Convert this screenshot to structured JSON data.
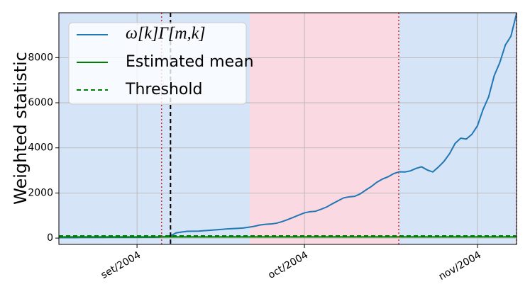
{
  "chart_data": {
    "type": "line",
    "y_label": "Weighted statistic",
    "categories": [
      null,
      null,
      null,
      null,
      null,
      null,
      null,
      null,
      null,
      null,
      null,
      null,
      null,
      null,
      "set/2004",
      null,
      null,
      null,
      null,
      null,
      null,
      null,
      null,
      null,
      null,
      null,
      null,
      null,
      null,
      null,
      null,
      null,
      null,
      null,
      null,
      null,
      null,
      null,
      null,
      null,
      null,
      null,
      null,
      null,
      "oct/2004",
      null,
      null,
      null,
      null,
      null,
      null,
      null,
      null,
      null,
      null,
      null,
      null,
      null,
      null,
      null,
      null,
      null,
      null,
      null,
      null,
      null,
      null,
      null,
      null,
      null,
      null,
      null,
      null,
      null,
      null,
      "nov/2004",
      null,
      null,
      null,
      null,
      null,
      null,
      null
    ],
    "series": [
      {
        "name": "ω[k]Γ[m,k]",
        "color": "#1f77b4",
        "style": "solid",
        "values": [
          20,
          20,
          20,
          20,
          25,
          25,
          25,
          25,
          25,
          30,
          30,
          30,
          30,
          30,
          30,
          35,
          35,
          35,
          40,
          60,
          100,
          230,
          270,
          300,
          305,
          310,
          330,
          345,
          365,
          385,
          405,
          420,
          430,
          445,
          480,
          520,
          580,
          610,
          625,
          660,
          730,
          820,
          920,
          1020,
          1120,
          1170,
          1190,
          1280,
          1380,
          1520,
          1650,
          1780,
          1830,
          1850,
          1960,
          2130,
          2290,
          2480,
          2620,
          2720,
          2860,
          2940,
          2930,
          2980,
          3090,
          3160,
          3020,
          2930,
          3150,
          3400,
          3740,
          4200,
          4430,
          4390,
          4600,
          4980,
          5700,
          6260,
          7200,
          7780,
          8560,
          8950,
          9950
        ]
      },
      {
        "name": "Estimated mean",
        "color": "#008000",
        "style": "solid",
        "values": [
          55,
          55,
          55,
          55,
          55,
          55,
          55,
          55,
          55,
          55,
          55,
          55,
          55,
          55,
          55,
          55,
          55,
          55,
          55,
          55,
          55,
          55,
          55,
          55,
          55,
          55,
          55,
          55,
          55,
          55,
          55,
          55,
          55,
          55,
          55,
          55,
          55,
          55,
          55,
          55,
          55,
          55,
          55,
          55,
          55,
          55,
          55,
          55,
          55,
          55,
          55,
          55,
          55,
          55,
          55,
          55,
          55,
          55,
          55,
          55,
          55,
          55,
          55,
          55,
          55,
          55,
          55,
          55,
          55,
          55,
          55,
          55,
          55,
          55,
          55,
          55,
          55,
          55,
          55,
          55,
          55,
          55,
          55
        ]
      },
      {
        "name": "Threshold",
        "color": "#008000",
        "style": "dashed",
        "values": [
          95,
          95,
          95,
          95,
          95,
          95,
          95,
          95,
          95,
          95,
          95,
          95,
          95,
          95,
          95,
          95,
          95,
          95,
          95,
          95,
          95,
          95,
          95,
          95,
          95,
          95,
          95,
          95,
          95,
          95,
          95,
          95,
          95,
          95,
          95,
          95,
          95,
          95,
          95,
          95,
          95,
          95,
          95,
          95,
          95,
          95,
          95,
          95,
          95,
          95,
          95,
          95,
          95,
          95,
          95,
          95,
          95,
          95,
          95,
          95,
          95,
          95,
          95,
          95,
          95,
          95,
          95,
          95,
          95,
          95,
          95,
          95,
          95,
          95,
          95,
          95,
          95,
          95,
          95,
          95,
          95,
          95,
          95
        ]
      }
    ],
    "ylim": [
      -280,
      9990
    ],
    "yticks": [
      0,
      2000,
      4000,
      6000,
      8000
    ],
    "grid": true,
    "legend": "upper-left",
    "spans": [
      {
        "from": 0,
        "to": 34.2,
        "color": "#d6e4f8"
      },
      {
        "from": 34.2,
        "to": 60.9,
        "color": "#fbd9e3"
      },
      {
        "from": 60.9,
        "to": 82,
        "color": "#d6e4f8"
      }
    ],
    "vlines": [
      {
        "x": 18.4,
        "color": "#d62728",
        "style": "dotted"
      },
      {
        "x": 20,
        "color": "#000000",
        "style": "dashed"
      },
      {
        "x": 60.9,
        "color": "#d62728",
        "style": "dotted"
      },
      {
        "x": 82,
        "color": "#d62728",
        "style": "dotted"
      }
    ]
  }
}
